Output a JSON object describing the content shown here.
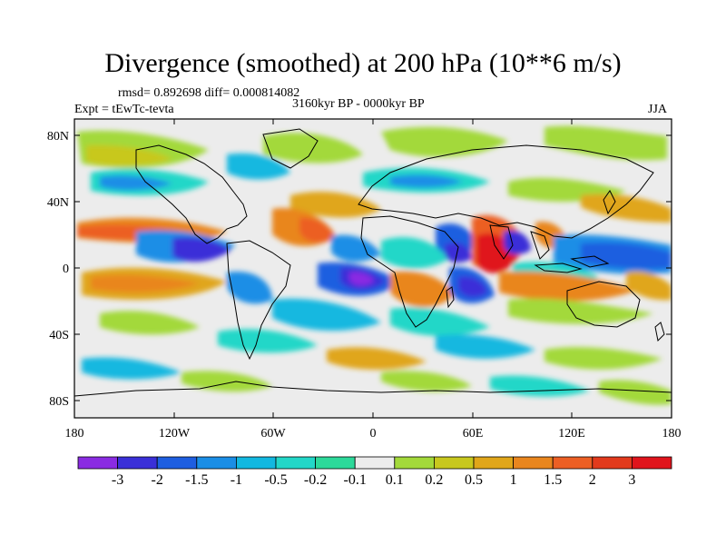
{
  "title": "Divergence (smoothed) at 200 hPa (10**6 m/s)",
  "stats_line": "rmsd= 0.892698 diff= 0.000814082",
  "experiment": "Expt = tEwTc-tevta",
  "period": "3160kyr BP - 0000kyr BP",
  "season": "JJA",
  "axes": {
    "y_ticks": [
      "80N",
      "40N",
      "0",
      "40S",
      "80S"
    ],
    "x_ticks": [
      "180",
      "120W",
      "60W",
      "0",
      "60E",
      "120E",
      "180"
    ]
  },
  "colorbar": {
    "labels": [
      "-3",
      "-2",
      "-1.5",
      "-1",
      "-0.5",
      "-0.2",
      "-0.1",
      "0.1",
      "0.2",
      "0.5",
      "1",
      "1.5",
      "2",
      "3"
    ],
    "colors": [
      "#8a2be2",
      "#3a2fd8",
      "#1e5ee0",
      "#1a8ee6",
      "#12b8e0",
      "#22d7c8",
      "#2cd99a",
      "#ececec",
      "#a3d93a",
      "#c8c81e",
      "#e0a61a",
      "#e9861e",
      "#ec5f24",
      "#e23a1c",
      "#e0141c"
    ]
  },
  "colors": {
    "land_outline": "#000000",
    "neutral": "#ececec"
  }
}
